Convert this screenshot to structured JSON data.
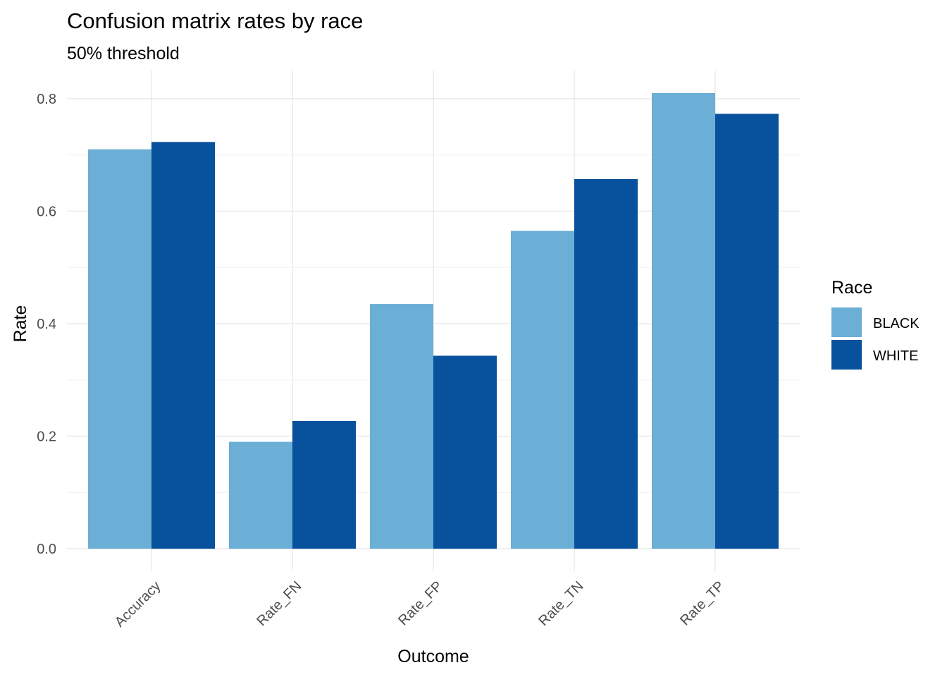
{
  "chart_data": {
    "type": "bar",
    "title": "Confusion matrix rates by race",
    "subtitle": "50% threshold",
    "xlabel": "Outcome",
    "ylabel": "Rate",
    "categories": [
      "Accuracy",
      "Rate_FN",
      "Rate_FP",
      "Rate_TN",
      "Rate_TP"
    ],
    "series": [
      {
        "name": "BLACK",
        "color": "#6baed6",
        "values": [
          0.71,
          0.19,
          0.435,
          0.565,
          0.81
        ]
      },
      {
        "name": "WHITE",
        "color": "#08519c",
        "values": [
          0.723,
          0.227,
          0.343,
          0.657,
          0.773
        ]
      }
    ],
    "ylim": [
      -0.04,
      0.85
    ],
    "yticks": [
      0.0,
      0.2,
      0.4,
      0.6,
      0.8
    ],
    "ytick_labels": [
      "0.0",
      "0.2",
      "0.4",
      "0.6",
      "0.8"
    ],
    "grid": true,
    "legend": {
      "title": "Race",
      "placement": "right"
    }
  }
}
